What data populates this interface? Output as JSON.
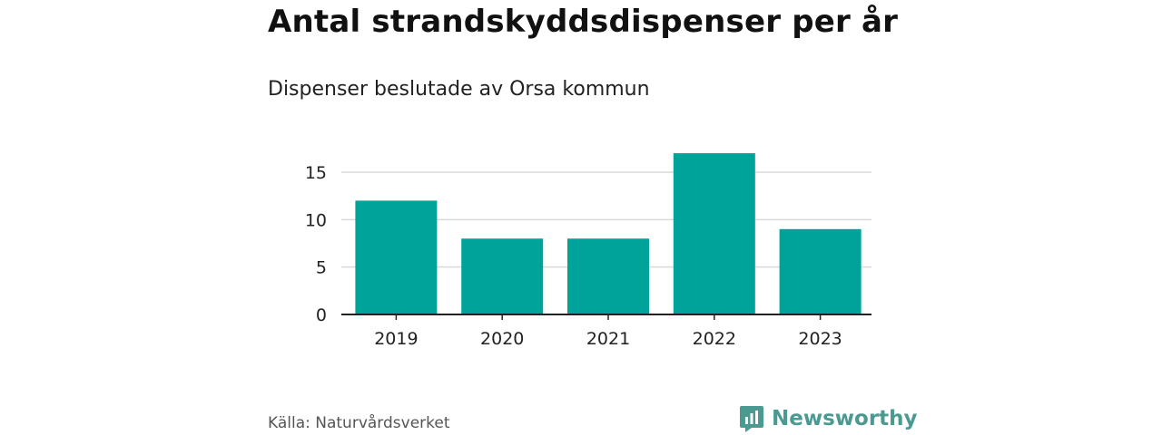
{
  "header": {
    "title": "Antal strandskyddsdispenser per år",
    "subtitle": "Dispenser beslutade av Orsa kommun"
  },
  "footer": {
    "source": "Källa: Naturvårdsverket",
    "brand": "Newsworthy"
  },
  "colors": {
    "bar": "#00a39a",
    "grid": "#d9d9d9",
    "axis": "#222222",
    "brand": "#4a9a92"
  },
  "chart_data": {
    "type": "bar",
    "title": "Antal strandskyddsdispenser per år",
    "subtitle": "Dispenser beslutade av Orsa kommun",
    "xlabel": "",
    "ylabel": "",
    "categories": [
      "2019",
      "2020",
      "2021",
      "2022",
      "2023"
    ],
    "values": [
      12,
      8,
      8,
      17,
      9
    ],
    "ylim": [
      0,
      18
    ],
    "yticks": [
      0,
      5,
      10,
      15
    ],
    "grid": true,
    "legend": "none"
  }
}
